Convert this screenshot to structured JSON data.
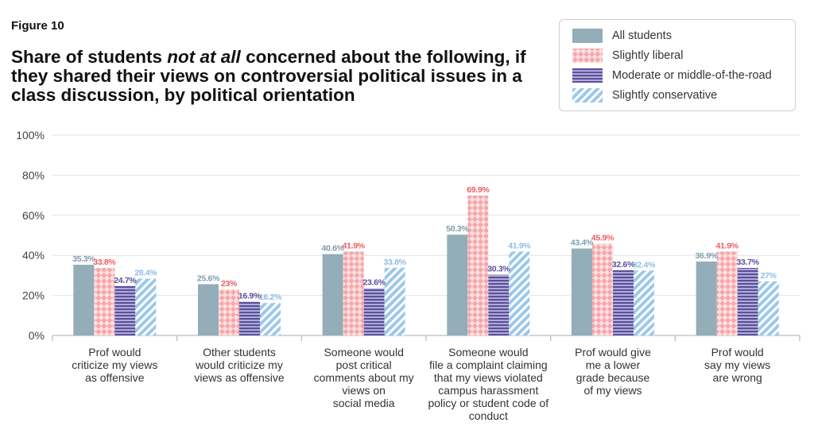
{
  "figure_label": "Figure 10",
  "title": {
    "before": "Share of students ",
    "emphasis": "not at all",
    "after": " concerned about the following, if they shared their views on controversial political issues in a class discussion, by political orientation"
  },
  "chart_data": {
    "type": "bar",
    "categories": [
      [
        "Prof would",
        "criticize my views",
        "as offensive"
      ],
      [
        "Other students",
        "would criticize my",
        "views as offensive"
      ],
      [
        "Someone would",
        "post critical",
        "comments about my",
        "views on",
        "social media"
      ],
      [
        "Someone would",
        "file a complaint claiming",
        "that my views violated",
        "campus harassment",
        "policy or student code of",
        "conduct"
      ],
      [
        "Prof would give",
        "me a lower",
        "grade because",
        "of my views"
      ],
      [
        "Prof would",
        "say my views",
        "are wrong"
      ]
    ],
    "series": [
      {
        "name": "All students",
        "color": "#93adb9",
        "label_color": "#7d9dac",
        "pattern": "solid",
        "values": [
          35.3,
          25.6,
          40.6,
          50.3,
          43.4,
          36.9
        ],
        "labels": [
          "35.3%",
          "25.6%",
          "40.6%",
          "50.3%",
          "43.4%",
          "36.9%"
        ]
      },
      {
        "name": "Slightly liberal",
        "color": "#f28d92",
        "label_color": "#ee5c63",
        "pattern": "crosshatch",
        "values": [
          33.8,
          23,
          41.9,
          69.9,
          45.9,
          41.9
        ],
        "labels": [
          "33.8%",
          "23%",
          "41.9%",
          "69.9%",
          "45.9%",
          "41.9%"
        ]
      },
      {
        "name": "Moderate or middle-of-the-road",
        "color": "#5a4f9c",
        "label_color": "#5a4f9c",
        "pattern": "horizontal-lines",
        "values": [
          24.7,
          16.9,
          23.6,
          30.3,
          32.6,
          33.7
        ],
        "labels": [
          "24.7%",
          "16.9%",
          "23.6%",
          "30.3%",
          "32.6%",
          "33.7%"
        ]
      },
      {
        "name": "Slightly conservative",
        "color": "#9dc8ea",
        "label_color": "#8fbde4",
        "pattern": "diagonal-lines",
        "values": [
          28.4,
          16.2,
          33.8,
          41.9,
          32.4,
          27
        ],
        "labels": [
          "28.4%",
          "16.2%",
          "33.8%",
          "41.9%",
          "32.4%",
          "27%"
        ]
      }
    ],
    "yticks": [
      "0%",
      "20%",
      "40%",
      "60%",
      "80%",
      "100%"
    ],
    "ylim": [
      0,
      100
    ],
    "grid": true,
    "legend_position": "top-right"
  }
}
